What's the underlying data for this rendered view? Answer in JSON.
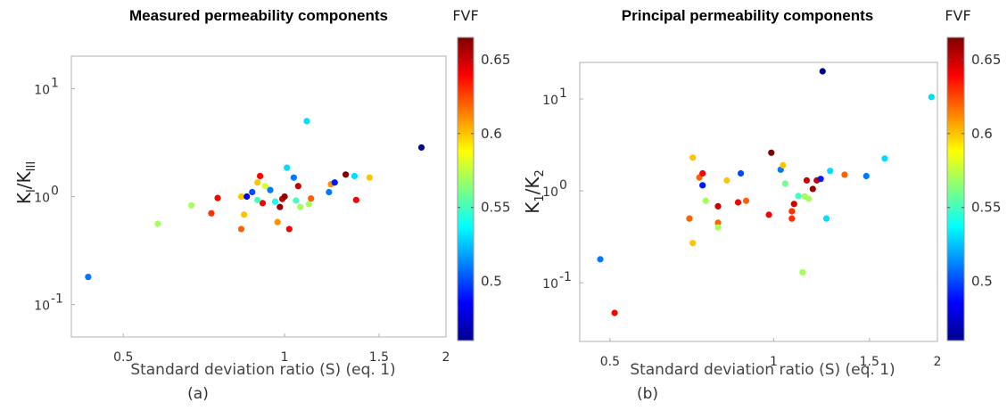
{
  "colorbar": {
    "label": "FVF",
    "ticks": [
      0.5,
      0.55,
      0.6,
      0.65
    ],
    "tick_labels": [
      "0.5",
      "0.55",
      "0.6",
      "0.65"
    ],
    "range": [
      0.46,
      0.665
    ],
    "colormap": "jet"
  },
  "chart_data": [
    {
      "type": "scatter",
      "panel": "a",
      "caption": "(a)",
      "title": "Measured permeability components",
      "xlabel": "Standard deviation ratio (S) (eq. 1)",
      "ylabel": {
        "main1": "K",
        "sub1": "I",
        "sep": "/K",
        "sub2": "III"
      },
      "xscale": "log",
      "yscale": "log",
      "xlim": [
        0.4,
        2.0
      ],
      "ylim": [
        0.05,
        20
      ],
      "xticks": [
        0.5,
        1,
        1.5,
        2
      ],
      "xtick_labels": [
        "0.5",
        "1",
        "1.5",
        "2"
      ],
      "yticks": [
        0.1,
        1,
        10
      ],
      "ytick_labels": [
        {
          "base": "10",
          "exp": "-1"
        },
        {
          "base": "10",
          "exp": "0"
        },
        {
          "base": "10",
          "exp": "1"
        }
      ],
      "points": [
        {
          "x": 0.43,
          "y": 0.18,
          "fvf": 0.51
        },
        {
          "x": 0.58,
          "y": 0.56,
          "fvf": 0.57
        },
        {
          "x": 0.67,
          "y": 0.83,
          "fvf": 0.57
        },
        {
          "x": 0.73,
          "y": 0.7,
          "fvf": 0.63
        },
        {
          "x": 0.75,
          "y": 0.97,
          "fvf": 0.64
        },
        {
          "x": 0.83,
          "y": 0.5,
          "fvf": 0.62
        },
        {
          "x": 0.84,
          "y": 0.68,
          "fvf": 0.6
        },
        {
          "x": 0.83,
          "y": 1.0,
          "fvf": 0.6
        },
        {
          "x": 0.85,
          "y": 1.0,
          "fvf": 0.48
        },
        {
          "x": 0.87,
          "y": 1.1,
          "fvf": 0.5
        },
        {
          "x": 0.89,
          "y": 1.35,
          "fvf": 0.6
        },
        {
          "x": 0.9,
          "y": 1.55,
          "fvf": 0.64
        },
        {
          "x": 0.91,
          "y": 0.87,
          "fvf": 0.64
        },
        {
          "x": 0.89,
          "y": 0.93,
          "fvf": 0.55
        },
        {
          "x": 0.92,
          "y": 1.25,
          "fvf": 0.58
        },
        {
          "x": 0.94,
          "y": 1.15,
          "fvf": 0.51
        },
        {
          "x": 0.96,
          "y": 0.9,
          "fvf": 0.54
        },
        {
          "x": 0.97,
          "y": 0.58,
          "fvf": 0.61
        },
        {
          "x": 0.98,
          "y": 0.8,
          "fvf": 0.66
        },
        {
          "x": 0.99,
          "y": 0.95,
          "fvf": 0.65
        },
        {
          "x": 1.0,
          "y": 1.0,
          "fvf": 0.66
        },
        {
          "x": 1.01,
          "y": 1.85,
          "fvf": 0.53
        },
        {
          "x": 1.02,
          "y": 0.5,
          "fvf": 0.64
        },
        {
          "x": 1.04,
          "y": 1.5,
          "fvf": 0.51
        },
        {
          "x": 1.05,
          "y": 0.92,
          "fvf": 0.55
        },
        {
          "x": 1.06,
          "y": 1.25,
          "fvf": 0.65
        },
        {
          "x": 1.07,
          "y": 0.8,
          "fvf": 0.57
        },
        {
          "x": 1.1,
          "y": 5.0,
          "fvf": 0.53
        },
        {
          "x": 1.11,
          "y": 0.85,
          "fvf": 0.57
        },
        {
          "x": 1.12,
          "y": 0.96,
          "fvf": 0.62
        },
        {
          "x": 1.21,
          "y": 1.1,
          "fvf": 0.51
        },
        {
          "x": 1.22,
          "y": 1.3,
          "fvf": 0.61
        },
        {
          "x": 1.24,
          "y": 1.35,
          "fvf": 0.49
        },
        {
          "x": 1.3,
          "y": 1.6,
          "fvf": 0.665
        },
        {
          "x": 1.35,
          "y": 1.55,
          "fvf": 0.53
        },
        {
          "x": 1.36,
          "y": 0.93,
          "fvf": 0.64
        },
        {
          "x": 1.44,
          "y": 1.5,
          "fvf": 0.6
        },
        {
          "x": 1.8,
          "y": 2.85,
          "fvf": 0.46
        }
      ]
    },
    {
      "type": "scatter",
      "panel": "b",
      "caption": "(b)",
      "title": "Principal permeability components",
      "xlabel": "Standard deviation ratio (S) (eq. 1)",
      "ylabel": {
        "main1": "K",
        "sub1": "1",
        "sep": "/K",
        "sub2": "2"
      },
      "xscale": "log",
      "yscale": "log",
      "xlim": [
        0.44,
        2.0
      ],
      "ylim": [
        0.023,
        25
      ],
      "xticks": [
        0.5,
        1,
        1.5,
        2
      ],
      "xtick_labels": [
        "0.5",
        "1",
        "1.5",
        "2"
      ],
      "yticks": [
        0.1,
        1,
        10
      ],
      "ytick_labels": [
        {
          "base": "10",
          "exp": "-1"
        },
        {
          "base": "10",
          "exp": "0"
        },
        {
          "base": "10",
          "exp": "1"
        }
      ],
      "points": [
        {
          "x": 0.48,
          "y": 0.18,
          "fvf": 0.51
        },
        {
          "x": 0.51,
          "y": 0.047,
          "fvf": 0.64
        },
        {
          "x": 0.7,
          "y": 0.5,
          "fvf": 0.62
        },
        {
          "x": 0.71,
          "y": 0.27,
          "fvf": 0.6
        },
        {
          "x": 0.71,
          "y": 2.3,
          "fvf": 0.6
        },
        {
          "x": 0.73,
          "y": 1.4,
          "fvf": 0.62
        },
        {
          "x": 0.74,
          "y": 1.55,
          "fvf": 0.64
        },
        {
          "x": 0.74,
          "y": 1.15,
          "fvf": 0.49
        },
        {
          "x": 0.75,
          "y": 0.78,
          "fvf": 0.57
        },
        {
          "x": 0.79,
          "y": 0.45,
          "fvf": 0.62
        },
        {
          "x": 0.79,
          "y": 0.4,
          "fvf": 0.57
        },
        {
          "x": 0.79,
          "y": 0.68,
          "fvf": 0.65
        },
        {
          "x": 0.82,
          "y": 1.3,
          "fvf": 0.6
        },
        {
          "x": 0.86,
          "y": 0.75,
          "fvf": 0.64
        },
        {
          "x": 0.87,
          "y": 1.55,
          "fvf": 0.5
        },
        {
          "x": 0.89,
          "y": 0.78,
          "fvf": 0.62
        },
        {
          "x": 0.98,
          "y": 0.55,
          "fvf": 0.64
        },
        {
          "x": 0.99,
          "y": 2.6,
          "fvf": 0.665
        },
        {
          "x": 1.03,
          "y": 1.7,
          "fvf": 0.51
        },
        {
          "x": 1.04,
          "y": 1.9,
          "fvf": 0.6
        },
        {
          "x": 1.05,
          "y": 1.2,
          "fvf": 0.56
        },
        {
          "x": 1.08,
          "y": 0.5,
          "fvf": 0.63
        },
        {
          "x": 1.08,
          "y": 0.6,
          "fvf": 0.63
        },
        {
          "x": 1.09,
          "y": 0.72,
          "fvf": 0.65
        },
        {
          "x": 1.11,
          "y": 0.88,
          "fvf": 0.55
        },
        {
          "x": 1.13,
          "y": 0.13,
          "fvf": 0.57
        },
        {
          "x": 1.14,
          "y": 0.87,
          "fvf": 0.57
        },
        {
          "x": 1.15,
          "y": 1.3,
          "fvf": 0.65
        },
        {
          "x": 1.16,
          "y": 0.82,
          "fvf": 0.57
        },
        {
          "x": 1.18,
          "y": 1.05,
          "fvf": 0.66
        },
        {
          "x": 1.2,
          "y": 1.3,
          "fvf": 0.65
        },
        {
          "x": 1.22,
          "y": 1.35,
          "fvf": 0.49
        },
        {
          "x": 1.23,
          "y": 20.0,
          "fvf": 0.46
        },
        {
          "x": 1.25,
          "y": 0.5,
          "fvf": 0.53
        },
        {
          "x": 1.27,
          "y": 1.65,
          "fvf": 0.53
        },
        {
          "x": 1.35,
          "y": 1.5,
          "fvf": 0.62
        },
        {
          "x": 1.48,
          "y": 1.45,
          "fvf": 0.51
        },
        {
          "x": 1.6,
          "y": 2.25,
          "fvf": 0.53
        },
        {
          "x": 1.95,
          "y": 10.5,
          "fvf": 0.53
        }
      ]
    }
  ]
}
